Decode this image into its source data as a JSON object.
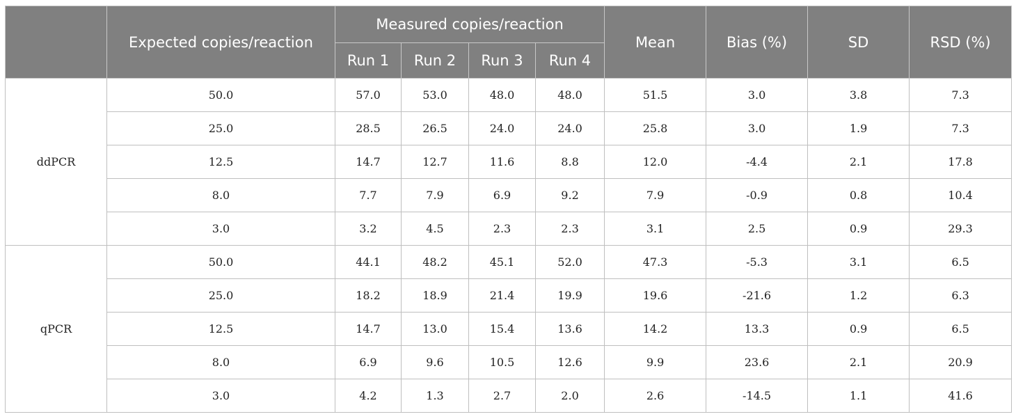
{
  "header": {
    "blank": "",
    "expected": "Expected copies/reaction",
    "measured": "Measured copies/reaction",
    "runs": [
      "Run 1",
      "Run 2",
      "Run 3",
      "Run 4"
    ],
    "mean": "Mean",
    "bias": "Bias (%)",
    "sd": "SD",
    "rsd": "RSD (%)"
  },
  "groups": [
    {
      "method": "ddPCR",
      "rows": [
        {
          "expected": "50.0",
          "runs": [
            "57.0",
            "53.0",
            "48.0",
            "48.0"
          ],
          "mean": "51.5",
          "bias": "3.0",
          "sd": "3.8",
          "rsd": "7.3"
        },
        {
          "expected": "25.0",
          "runs": [
            "28.5",
            "26.5",
            "24.0",
            "24.0"
          ],
          "mean": "25.8",
          "bias": "3.0",
          "sd": "1.9",
          "rsd": "7.3"
        },
        {
          "expected": "12.5",
          "runs": [
            "14.7",
            "12.7",
            "11.6",
            "8.8"
          ],
          "mean": "12.0",
          "bias": "-4.4",
          "sd": "2.1",
          "rsd": "17.8"
        },
        {
          "expected": "8.0",
          "runs": [
            "7.7",
            "7.9",
            "6.9",
            "9.2"
          ],
          "mean": "7.9",
          "bias": "-0.9",
          "sd": "0.8",
          "rsd": "10.4"
        },
        {
          "expected": "3.0",
          "runs": [
            "3.2",
            "4.5",
            "2.3",
            "2.3"
          ],
          "mean": "3.1",
          "bias": "2.5",
          "sd": "0.9",
          "rsd": "29.3"
        }
      ]
    },
    {
      "method": "qPCR",
      "rows": [
        {
          "expected": "50.0",
          "runs": [
            "44.1",
            "48.2",
            "45.1",
            "52.0"
          ],
          "mean": "47.3",
          "bias": "-5.3",
          "sd": "3.1",
          "rsd": "6.5"
        },
        {
          "expected": "25.0",
          "runs": [
            "18.2",
            "18.9",
            "21.4",
            "19.9"
          ],
          "mean": "19.6",
          "bias": "-21.6",
          "sd": "1.2",
          "rsd": "6.3"
        },
        {
          "expected": "12.5",
          "runs": [
            "14.7",
            "13.0",
            "15.4",
            "13.6"
          ],
          "mean": "14.2",
          "bias": "13.3",
          "sd": "0.9",
          "rsd": "6.5"
        },
        {
          "expected": "8.0",
          "runs": [
            "6.9",
            "9.6",
            "10.5",
            "12.6"
          ],
          "mean": "9.9",
          "bias": "23.6",
          "sd": "2.1",
          "rsd": "20.9"
        },
        {
          "expected": "3.0",
          "runs": [
            "4.2",
            "1.3",
            "2.7",
            "2.0"
          ],
          "mean": "2.6",
          "bias": "-14.5",
          "sd": "1.1",
          "rsd": "41.6"
        }
      ]
    }
  ]
}
